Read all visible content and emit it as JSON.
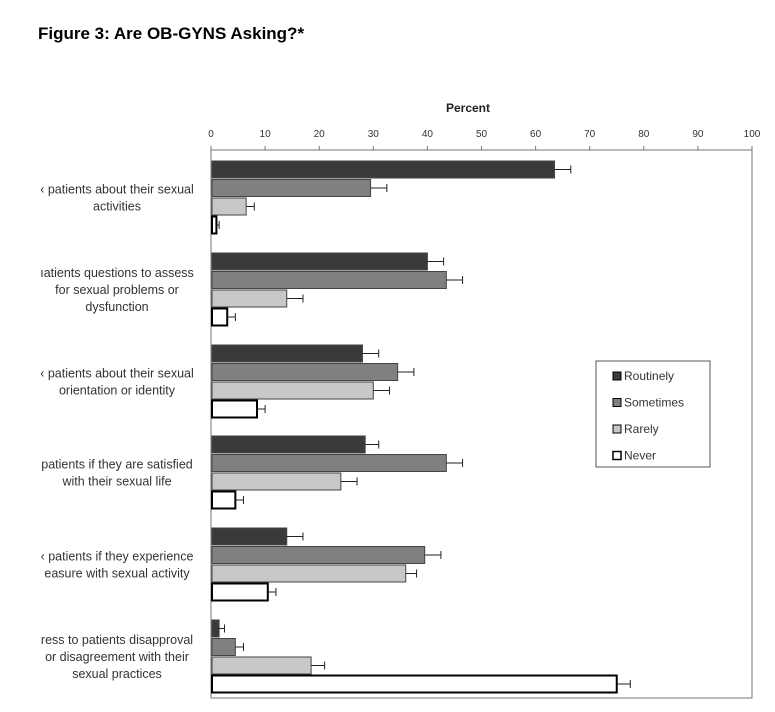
{
  "figure_title": "Figure 3: Are OB-GYNS Asking?*",
  "chart_data": {
    "type": "bar",
    "orientation": "horizontal",
    "xlabel": "Percent",
    "xlim": [
      0,
      100
    ],
    "xticks": [
      0,
      10,
      20,
      30,
      40,
      50,
      60,
      70,
      80,
      90,
      100
    ],
    "categories": [
      [
        "‹ patients about their sexual",
        "activities"
      ],
      [
        "ıatients questions to assess",
        "for sexual problems or",
        "dysfunction"
      ],
      [
        "‹ patients about their sexual",
        "orientation or identity"
      ],
      [
        "patients if they are satisfied",
        "with their sexual life"
      ],
      [
        "‹ patients if they experience",
        "easure with sexual activity"
      ],
      [
        "ress to patients disapproval",
        "or disagreement with their",
        "sexual practices"
      ]
    ],
    "series": [
      {
        "name": "Routinely",
        "color": "#3a3a3a",
        "values": [
          63.5,
          40,
          28,
          28.5,
          14,
          1.5
        ],
        "errors": [
          3,
          3,
          3,
          2.5,
          3,
          1
        ]
      },
      {
        "name": "Sometimes",
        "color": "#808080",
        "values": [
          29.5,
          43.5,
          34.5,
          43.5,
          39.5,
          4.5
        ],
        "errors": [
          3,
          3,
          3,
          3,
          3,
          1.5
        ]
      },
      {
        "name": "Rarely",
        "color": "#c8c8c8",
        "values": [
          6.5,
          14,
          30,
          24,
          36,
          18.5
        ],
        "errors": [
          1.5,
          3,
          3,
          3,
          2,
          2.5
        ]
      },
      {
        "name": "Never",
        "color": "#ffffff",
        "values": [
          1,
          3,
          8.5,
          4.5,
          10.5,
          75
        ],
        "errors": [
          0.5,
          1.5,
          1.5,
          1.5,
          1.5,
          2.5
        ]
      }
    ],
    "legend_position": "right",
    "grid": false,
    "error_bars": true
  }
}
